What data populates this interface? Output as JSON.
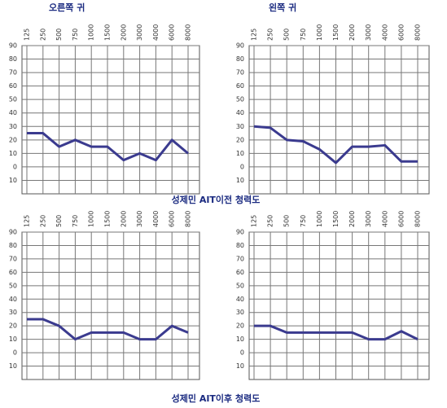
{
  "chart_data": [
    {
      "type": "line",
      "title": "오른쪽 귀",
      "categories": [
        "125",
        "250",
        "500",
        "750",
        "1000",
        "1500",
        "2000",
        "3000",
        "4000",
        "6000",
        "8000"
      ],
      "series": [
        {
          "color": "#3b3b8f",
          "values": [
            25,
            25,
            15,
            20,
            15,
            15,
            5,
            10,
            5,
            20,
            10
          ]
        }
      ],
      "ylim": [
        -20,
        90
      ],
      "yticks": [
        {
          "value": -10,
          "label": "10"
        },
        0,
        10,
        20,
        30,
        40,
        50,
        60,
        70,
        80,
        90
      ],
      "grid": true
    },
    {
      "type": "line",
      "title": "왼쪽 귀",
      "categories": [
        "125",
        "250",
        "500",
        "750",
        "1000",
        "1500",
        "2000",
        "3000",
        "4000",
        "6000",
        "8000"
      ],
      "series": [
        {
          "color": "#3b3b8f",
          "values": [
            30,
            29,
            20,
            19,
            13,
            3,
            15,
            15,
            16,
            4,
            4
          ]
        }
      ],
      "ylim": [
        -20,
        90
      ],
      "yticks": [
        {
          "value": -10,
          "label": "10"
        },
        0,
        10,
        20,
        30,
        40,
        50,
        60,
        70,
        80,
        90
      ],
      "grid": true
    },
    {
      "type": "line",
      "categories": [
        "125",
        "250",
        "500",
        "750",
        "1000",
        "1500",
        "2000",
        "3000",
        "4000",
        "6000",
        "8000"
      ],
      "series": [
        {
          "color": "#3b3b8f",
          "values": [
            25,
            25,
            20,
            10,
            15,
            15,
            15,
            10,
            10,
            20,
            15
          ]
        }
      ],
      "ylim": [
        -20,
        90
      ],
      "yticks": [
        {
          "value": -10,
          "label": "10"
        },
        0,
        10,
        20,
        30,
        40,
        50,
        60,
        70,
        80,
        90
      ],
      "grid": true
    },
    {
      "type": "line",
      "categories": [
        "125",
        "250",
        "500",
        "750",
        "1000",
        "1500",
        "2000",
        "3000",
        "4000",
        "6000",
        "8000"
      ],
      "series": [
        {
          "color": "#3b3b8f",
          "values": [
            20,
            20,
            15,
            15,
            15,
            15,
            15,
            10,
            10,
            16,
            10
          ]
        }
      ],
      "ylim": [
        -20,
        90
      ],
      "yticks": [
        {
          "value": -10,
          "label": "10"
        },
        0,
        10,
        20,
        30,
        40,
        50,
        60,
        70,
        80,
        90
      ],
      "grid": true
    }
  ],
  "captions": [
    "성제민 AIT이전 청력도",
    "성제민 AIT이후 청력도"
  ]
}
